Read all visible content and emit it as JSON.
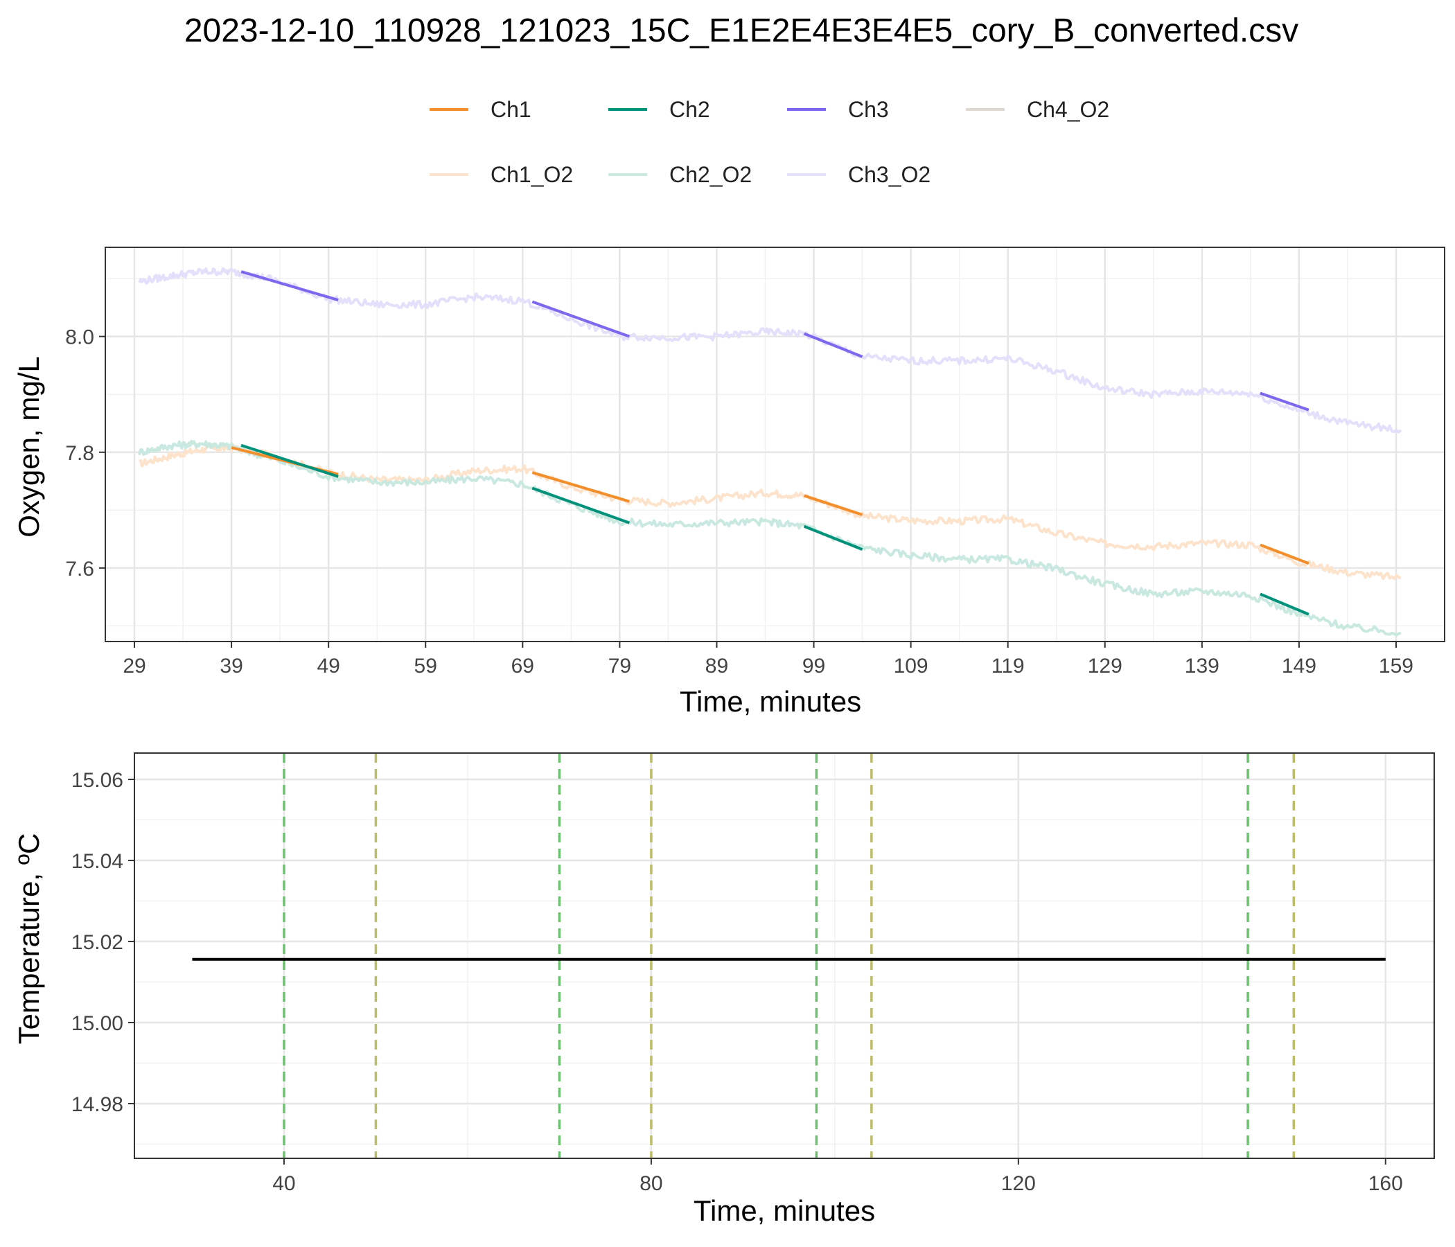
{
  "title": "2023-12-10_110928_121023_15C_E1E2E4E3E4E5_cory_B_converted.csv",
  "colors": {
    "Ch1": "#f28e2b",
    "Ch2": "#00917a",
    "Ch3": "#7b68ee",
    "Ch4_O2": "#ddd8d0",
    "Ch1_O2": "#fde3cc",
    "Ch2_O2": "#c8e8e0",
    "Ch3_O2": "#e4e0fb",
    "temperature": "#000000",
    "start_marker": "#6cc070",
    "end_marker": "#bcbd6a"
  },
  "chart_data": [
    {
      "type": "line",
      "xlabel": "Time, minutes",
      "ylabel": "Oxygen, mg/L",
      "xlim": [
        26,
        164
      ],
      "ylim": [
        7.473,
        8.154
      ],
      "xticks": [
        "29",
        "39",
        "49",
        "59",
        "69",
        "79",
        "89",
        "99",
        "109",
        "119",
        "129",
        "139",
        "149",
        "159"
      ],
      "yticks": [
        "7.6",
        "7.8",
        "8.0"
      ],
      "grid": true,
      "legend": {
        "placement": "top",
        "entries": [
          "Ch1",
          "Ch2",
          "Ch3",
          "Ch4_O2",
          "Ch1_O2",
          "Ch2_O2",
          "Ch3_O2"
        ]
      },
      "series": [
        {
          "name": "Ch1_O2",
          "x": [
            29.5,
            33,
            36,
            39,
            43,
            49,
            54,
            59,
            64,
            69,
            74,
            79,
            84,
            89,
            94,
            98,
            104,
            109,
            114,
            119,
            124,
            129,
            134,
            139,
            144,
            149,
            154,
            159.5
          ],
          "values": [
            7.78,
            7.795,
            7.805,
            7.808,
            7.795,
            7.765,
            7.752,
            7.752,
            7.768,
            7.772,
            7.74,
            7.718,
            7.712,
            7.72,
            7.73,
            7.725,
            7.69,
            7.682,
            7.681,
            7.685,
            7.66,
            7.642,
            7.637,
            7.643,
            7.64,
            7.61,
            7.592,
            7.583
          ]
        },
        {
          "name": "Ch2_O2",
          "x": [
            29.5,
            33,
            36,
            39,
            43,
            49,
            54,
            59,
            64,
            69,
            74,
            79,
            84,
            89,
            94,
            98,
            104,
            109,
            114,
            119,
            124,
            129,
            134,
            139,
            144,
            149,
            154,
            159.5
          ],
          "values": [
            7.8,
            7.812,
            7.815,
            7.81,
            7.79,
            7.758,
            7.748,
            7.748,
            7.755,
            7.745,
            7.71,
            7.68,
            7.675,
            7.678,
            7.68,
            7.672,
            7.635,
            7.622,
            7.615,
            7.615,
            7.598,
            7.572,
            7.555,
            7.56,
            7.553,
            7.52,
            7.498,
            7.488
          ]
        },
        {
          "name": "Ch3_O2",
          "x": [
            29.5,
            33,
            36,
            39,
            43,
            49,
            54,
            59,
            64,
            69,
            74,
            79,
            84,
            89,
            94,
            98,
            104,
            109,
            114,
            119,
            124,
            129,
            134,
            139,
            144,
            149,
            154,
            159.5
          ],
          "values": [
            8.095,
            8.105,
            8.112,
            8.112,
            8.1,
            8.065,
            8.055,
            8.055,
            8.068,
            8.062,
            8.03,
            8.0,
            7.998,
            8.0,
            8.008,
            8.005,
            7.965,
            7.958,
            7.958,
            7.962,
            7.94,
            7.91,
            7.9,
            7.905,
            7.902,
            7.872,
            7.85,
            7.838
          ]
        },
        {
          "name": "Ch1",
          "segments": [
            {
              "x": [
                39,
                50
              ],
              "values": [
                7.808,
                7.762
              ]
            },
            {
              "x": [
                70,
                80
              ],
              "values": [
                7.765,
                7.715
              ]
            },
            {
              "x": [
                98,
                104
              ],
              "values": [
                7.725,
                7.692
              ]
            },
            {
              "x": [
                145,
                150
              ],
              "values": [
                7.64,
                7.608
              ]
            }
          ]
        },
        {
          "name": "Ch2",
          "segments": [
            {
              "x": [
                40,
                50
              ],
              "values": [
                7.812,
                7.758
              ]
            },
            {
              "x": [
                70,
                80
              ],
              "values": [
                7.738,
                7.678
              ]
            },
            {
              "x": [
                98,
                104
              ],
              "values": [
                7.672,
                7.632
              ]
            },
            {
              "x": [
                145,
                150
              ],
              "values": [
                7.555,
                7.52
              ]
            }
          ]
        },
        {
          "name": "Ch3",
          "segments": [
            {
              "x": [
                40,
                50
              ],
              "values": [
                8.112,
                8.063
              ]
            },
            {
              "x": [
                70,
                80
              ],
              "values": [
                8.06,
                8.0
              ]
            },
            {
              "x": [
                98,
                104
              ],
              "values": [
                8.005,
                7.965
              ]
            },
            {
              "x": [
                145,
                150
              ],
              "values": [
                7.902,
                7.873
              ]
            }
          ]
        }
      ]
    },
    {
      "type": "line",
      "xlabel": "Time, minutes",
      "ylabel": "Temperature, ºC",
      "xlim": [
        23.7,
        165.3
      ],
      "ylim": [
        14.9665,
        15.0665
      ],
      "xticks": [
        "40",
        "80",
        "120",
        "160"
      ],
      "yticks": [
        "14.98",
        "15.00",
        "15.02",
        "15.04",
        "15.06"
      ],
      "grid": true,
      "series": [
        {
          "name": "Temperature",
          "x": [
            30,
            160
          ],
          "values": [
            15.0156,
            15.0156
          ]
        }
      ],
      "vlines_start": [
        40,
        70,
        98,
        145
      ],
      "vlines_end": [
        50,
        80,
        104,
        150
      ]
    }
  ]
}
